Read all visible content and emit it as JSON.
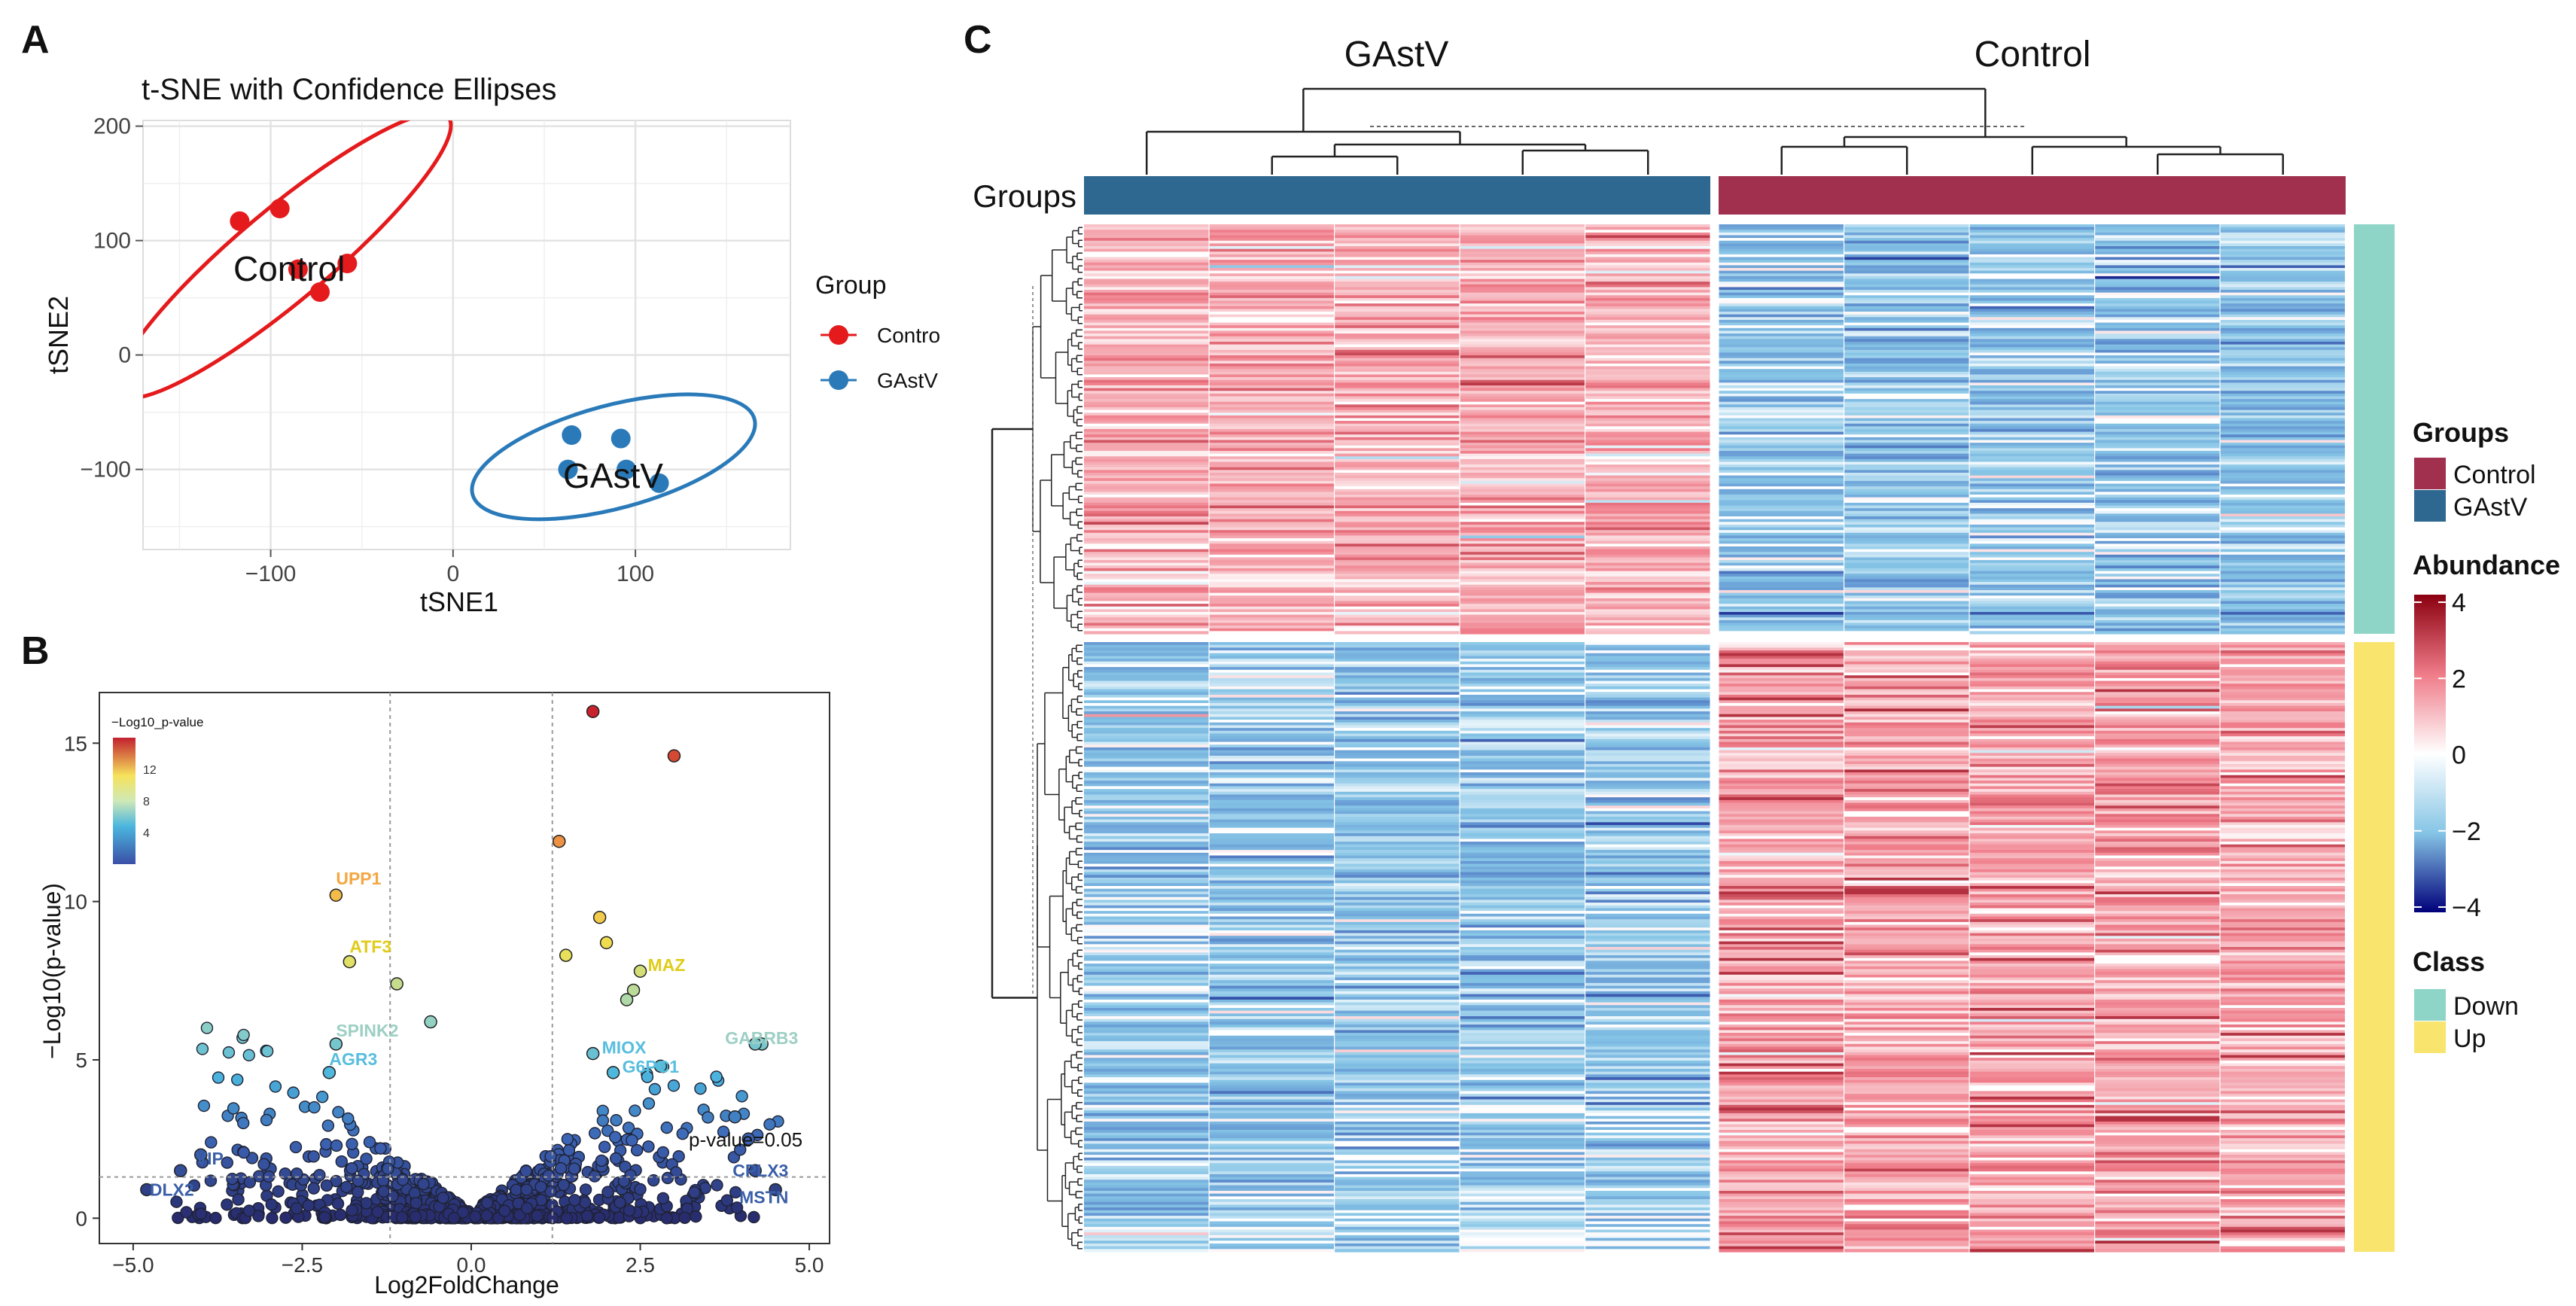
{
  "panel_letters": [
    "A",
    "B",
    "C"
  ],
  "chart_data": [
    {
      "panel": "A",
      "type": "scatter",
      "title": "t-SNE with Confidence Ellipses",
      "xlabel": "tSNE1",
      "ylabel": "tSNE2",
      "xlim": [
        -170,
        185
      ],
      "ylim": [
        -170,
        205
      ],
      "xticks": [
        -100,
        0,
        100
      ],
      "xtick_labels": [
        "−100",
        "0",
        "100"
      ],
      "yticks": [
        -100,
        0,
        100,
        200
      ],
      "ytick_labels": [
        "−100",
        "0",
        "100",
        "200"
      ],
      "grid": true,
      "legend": {
        "title": "Group",
        "position": "right",
        "entries": [
          "Contro",
          "GAstV"
        ]
      },
      "series": [
        {
          "name": "Control",
          "label": "Control",
          "color": "#e41a1c",
          "points": [
            [
              -117,
              117
            ],
            [
              -95,
              128
            ],
            [
              -85,
              75
            ],
            [
              -73,
              55
            ],
            [
              -58,
              80
            ]
          ],
          "ellipse": {
            "cx": -93,
            "cy": 87,
            "rx": 118,
            "ry": 40,
            "angle_deg": -40
          }
        },
        {
          "name": "GAstV",
          "label": "GAstV",
          "color": "#2a7ab9",
          "points": [
            [
              65,
              -70
            ],
            [
              63,
              -100
            ],
            [
              92,
              -73
            ],
            [
              113,
              -112
            ],
            [
              95,
              -100
            ]
          ],
          "ellipse": {
            "cx": 88,
            "cy": -89,
            "rx": 80,
            "ry": 45,
            "angle_deg": -15
          }
        }
      ]
    },
    {
      "panel": "B",
      "type": "scatter",
      "subtype": "volcano",
      "title": "",
      "xlabel": "Log2FoldChange",
      "ylabel": "−Log10(p-value)",
      "xlim": [
        -5.5,
        5.3
      ],
      "ylim": [
        -0.8,
        16.6
      ],
      "xticks": [
        -5,
        -2.5,
        0,
        2.5,
        5
      ],
      "xtick_labels": [
        "−5.0",
        "−2.5",
        "0.0",
        "2.5",
        "5.0"
      ],
      "yticks": [
        0,
        5,
        10,
        15
      ],
      "ytick_labels": [
        "0",
        "5",
        "10",
        "15"
      ],
      "vlines": [
        -1.2,
        1.2
      ],
      "hline": 1.3,
      "hline_label": "p-value=0.05",
      "colorbar": {
        "title": "−Log10_p-value",
        "ticks": [
          4,
          8,
          12
        ],
        "range": [
          0,
          16
        ]
      },
      "labeled_points": [
        {
          "gene": "UPP1",
          "x": -2.0,
          "y": 10.2,
          "color": "#f4a742"
        },
        {
          "gene": "ATF3",
          "x": -1.8,
          "y": 8.1,
          "color": "#e0cc1a"
        },
        {
          "gene": "MAZ",
          "x": 2.5,
          "y": 7.8,
          "color": "#e0cc1a"
        },
        {
          "gene": "SPINK2",
          "x": -2.0,
          "y": 5.5,
          "color": "#9dcfc4"
        },
        {
          "gene": "AGR3",
          "x": -2.1,
          "y": 4.6,
          "color": "#58bede"
        },
        {
          "gene": "MIOX",
          "x": 1.8,
          "y": 5.2,
          "color": "#58bede"
        },
        {
          "gene": "G6PC1",
          "x": 2.1,
          "y": 4.6,
          "color": "#58bede"
        },
        {
          "gene": "GABRB3",
          "x": 4.2,
          "y": 5.5,
          "color": "#9dcfc4"
        },
        {
          "gene": "VIP",
          "x": -4.3,
          "y": 1.5,
          "color": "#3a5fa8"
        },
        {
          "gene": "DLX2",
          "x": -4.8,
          "y": 0.9,
          "color": "#3a5fa8"
        },
        {
          "gene": "CPLX3",
          "x": 4.2,
          "y": 1.5,
          "color": "#3a5fa8"
        },
        {
          "gene": "MSTN",
          "x": 4.5,
          "y": 0.9,
          "color": "#3a5fa8"
        }
      ],
      "extra_points": [
        {
          "x": 1.8,
          "y": 16.0
        },
        {
          "x": 3.0,
          "y": 14.6
        },
        {
          "x": 1.3,
          "y": 11.9
        },
        {
          "x": 1.9,
          "y": 9.5
        },
        {
          "x": 2.0,
          "y": 8.7
        },
        {
          "x": 2.4,
          "y": 7.2
        },
        {
          "x": 2.3,
          "y": 6.9
        },
        {
          "x": 1.4,
          "y": 8.3
        },
        {
          "x": -1.1,
          "y": 7.4
        },
        {
          "x": 4.3,
          "y": 5.5
        },
        {
          "x": 3.9,
          "y": 3.2
        },
        {
          "x": 4.1,
          "y": 2.5
        },
        {
          "x": -4.0,
          "y": 2.0
        },
        {
          "x": 2.8,
          "y": 4.8
        },
        {
          "x": -0.6,
          "y": 6.2
        }
      ]
    },
    {
      "panel": "C",
      "type": "heatmap",
      "group_headers": [
        "GAstV",
        "Control"
      ],
      "groups_row_label": "Groups",
      "columns": [
        {
          "group": "GAstV",
          "index": 1
        },
        {
          "group": "GAstV",
          "index": 2
        },
        {
          "group": "GAstV",
          "index": 3
        },
        {
          "group": "GAstV",
          "index": 4
        },
        {
          "group": "GAstV",
          "index": 5
        },
        {
          "group": "Control",
          "index": 1
        },
        {
          "group": "Control",
          "index": 2
        },
        {
          "group": "Control",
          "index": 3
        },
        {
          "group": "Control",
          "index": 4
        },
        {
          "group": "Control",
          "index": 5
        }
      ],
      "row_blocks": [
        {
          "class": "Down",
          "gastv_mean": 1.2,
          "control_mean": -1.0
        },
        {
          "class": "Up",
          "gastv_mean": -1.0,
          "control_mean": 1.4
        }
      ],
      "color_scale": {
        "min": -4,
        "max": 4,
        "ticks": [
          4,
          2,
          0,
          -2,
          -4
        ],
        "tick_labels": [
          "4",
          "2",
          "0",
          "−2",
          "−4"
        ]
      },
      "legend": {
        "groups_title": "Groups",
        "groups": [
          {
            "name": "Control",
            "color": "#a0304e"
          },
          {
            "name": "GAstV",
            "color": "#2e678f"
          }
        ],
        "abundance_title": "Abundance",
        "class_title": "Class",
        "classes": [
          {
            "name": "Down",
            "color": "#8fd5c7"
          },
          {
            "name": "Up",
            "color": "#f9e46e"
          }
        ]
      }
    }
  ]
}
